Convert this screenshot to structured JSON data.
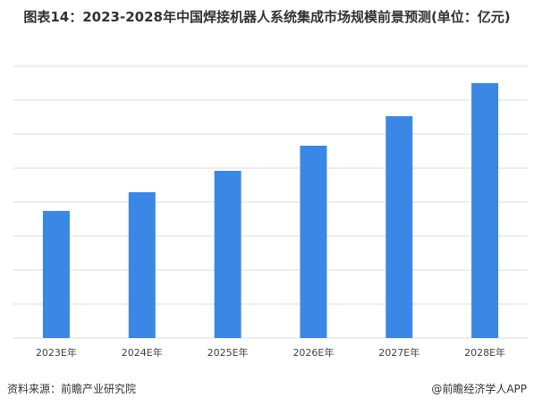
{
  "chart_data": {
    "type": "bar",
    "title": "图表14：2023-2028年中国焊接机器人系统集成市场规模前景预测(单位：亿元)",
    "categories": [
      "2023E年",
      "2024E年",
      "2025E年",
      "2026E年",
      "2027E年",
      "2028E年"
    ],
    "values": [
      37.4,
      42.9,
      49.2,
      56.6,
      65.3,
      75.0
    ],
    "color": "#3b87e6",
    "ylim": [
      0,
      80
    ],
    "yticks": [
      0,
      10,
      20,
      30,
      40,
      50,
      60,
      70,
      80
    ],
    "grid": true,
    "source": "资料来源：前瞻产业研究院",
    "brand": "@前瞻经济学人APP"
  }
}
